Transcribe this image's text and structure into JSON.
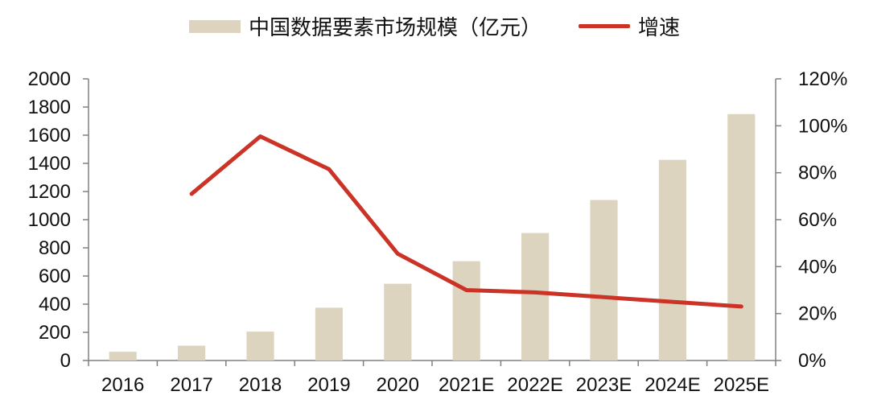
{
  "chart_data": {
    "type": "bar",
    "categories": [
      "2016",
      "2017",
      "2018",
      "2019",
      "2020",
      "2021E",
      "2022E",
      "2023E",
      "2024E",
      "2025E"
    ],
    "series": [
      {
        "name": "中国数据要素市场规模（亿元）",
        "type": "bar",
        "axis": "left",
        "values": [
          62,
          105,
          205,
          375,
          545,
          705,
          905,
          1140,
          1425,
          1750
        ]
      },
      {
        "name": "增速",
        "type": "line",
        "axis": "right",
        "values": [
          null,
          71,
          95.5,
          81.5,
          45.5,
          30,
          29,
          27,
          25,
          23
        ]
      }
    ],
    "y_left": {
      "min": 0,
      "max": 2000,
      "ticks": [
        0,
        200,
        400,
        600,
        800,
        1000,
        1200,
        1400,
        1600,
        1800,
        2000
      ]
    },
    "y_right": {
      "min": 0,
      "max": 120,
      "ticks": [
        "0%",
        "20%",
        "40%",
        "60%",
        "80%",
        "100%",
        "120%"
      ]
    },
    "legend_position": "top-center",
    "grid": false,
    "colors": {
      "bar": "#ddd4c0",
      "line": "#cc3327",
      "axis": "#808080",
      "text": "#111111"
    }
  }
}
